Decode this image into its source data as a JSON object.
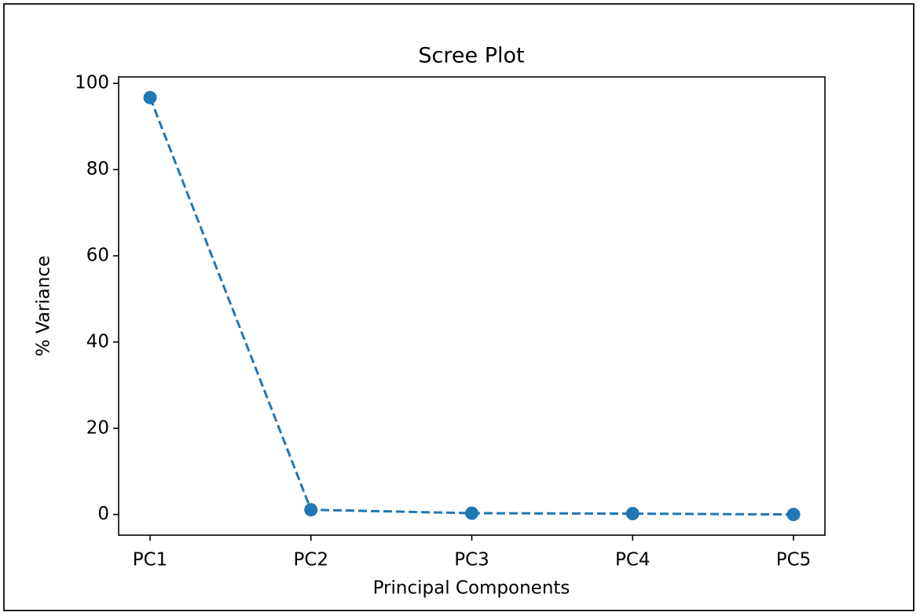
{
  "chart_data": {
    "type": "line",
    "title": "Scree Plot",
    "x_label": "Principal Components",
    "y_label": "% Variance",
    "categories": [
      "PC1",
      "PC2",
      "PC3",
      "PC4",
      "PC5"
    ],
    "values": [
      96.7,
      1.1,
      0.3,
      0.2,
      0.0
    ],
    "color": "#1f77b4",
    "line_style": "dashed",
    "marker": "circle",
    "ylim": [
      -4.8,
      101.5
    ],
    "yticks": [
      0,
      20,
      40,
      60,
      80,
      100
    ],
    "grid": false
  }
}
